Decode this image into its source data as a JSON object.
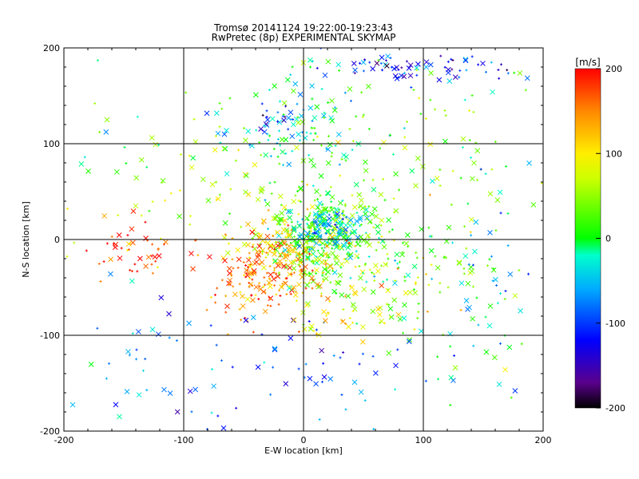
{
  "chart_data": {
    "type": "scatter",
    "title": "Tromsø 20141124 19:22:00-19:23:43",
    "subtitle": "RwPretec (8p) EXPERIMENTAL SKYMAP",
    "xlabel": "E-W location [km]",
    "ylabel": "N-S location [km]",
    "xlim": [
      -200,
      200
    ],
    "ylim": [
      -200,
      200
    ],
    "x_ticks": [
      -200,
      -100,
      0,
      100,
      200
    ],
    "y_ticks": [
      -200,
      -100,
      0,
      100,
      200
    ],
    "x_tick_labels": [
      "-200",
      "-100",
      "0",
      "100",
      "200"
    ],
    "y_tick_labels": [
      "-200",
      "-100",
      "0",
      "100",
      "200"
    ],
    "grid": true,
    "markers": [
      "+",
      "x"
    ],
    "colorbar": {
      "label": "[m/s]",
      "range": [
        -200,
        200
      ],
      "ticks": [
        200,
        100,
        0,
        -100,
        -200
      ],
      "tick_labels": [
        "200",
        "100",
        "0",
        "-100",
        "-200"
      ],
      "colors": [
        {
          "v": -200,
          "c": "#000000"
        },
        {
          "v": -170,
          "c": "#5a008c"
        },
        {
          "v": -120,
          "c": "#0000ff"
        },
        {
          "v": -60,
          "c": "#00aaff"
        },
        {
          "v": -20,
          "c": "#00ffcc"
        },
        {
          "v": 0,
          "c": "#00ff00"
        },
        {
          "v": 70,
          "c": "#ccff00"
        },
        {
          "v": 100,
          "c": "#ffee00"
        },
        {
          "v": 150,
          "c": "#ff8800"
        },
        {
          "v": 200,
          "c": "#ff0000"
        }
      ]
    },
    "series": [
      {
        "clusters": [
          {
            "cx": 15,
            "cy": 5,
            "sx": 25,
            "sy": 22,
            "v": 15,
            "n": 320
          },
          {
            "cx": 20,
            "cy": 15,
            "sx": 12,
            "sy": 10,
            "v": -50,
            "n": 90
          },
          {
            "cx": -35,
            "cy": -35,
            "sx": 25,
            "sy": 22,
            "v": 150,
            "n": 170
          },
          {
            "cx": -15,
            "cy": -15,
            "sx": 20,
            "sy": 18,
            "v": 115,
            "n": 110
          },
          {
            "cx": -140,
            "cy": -10,
            "sx": 22,
            "sy": 16,
            "v": 195,
            "n": 45
          },
          {
            "cx": 80,
            "cy": -35,
            "sx": 45,
            "sy": 28,
            "v": 30,
            "n": 140
          },
          {
            "cx": -10,
            "cy": 110,
            "sx": 30,
            "sy": 35,
            "v": -20,
            "n": 110
          },
          {
            "cx": 90,
            "cy": 180,
            "sx": 40,
            "sy": 9,
            "v": -110,
            "n": 70
          },
          {
            "cx": -25,
            "cy": 125,
            "sx": 9,
            "sy": 10,
            "v": -100,
            "n": 20
          },
          {
            "cx": 10,
            "cy": -140,
            "sx": 70,
            "sy": 30,
            "v": -90,
            "n": 65
          },
          {
            "cx": -60,
            "cy": 60,
            "sx": 45,
            "sy": 40,
            "v": 60,
            "n": 70
          },
          {
            "cx": 100,
            "cy": 60,
            "sx": 45,
            "sy": 30,
            "v": 40,
            "n": 60
          },
          {
            "cx": 160,
            "cy": -20,
            "sx": 25,
            "sy": 40,
            "v": -40,
            "n": 35
          },
          {
            "cx": 30,
            "cy": -70,
            "sx": 35,
            "sy": 20,
            "v": 100,
            "n": 55
          },
          {
            "cx": -130,
            "cy": -120,
            "sx": 40,
            "sy": 40,
            "v": -60,
            "n": 35
          },
          {
            "cx": 80,
            "cy": 120,
            "sx": 50,
            "sy": 40,
            "v": 30,
            "n": 50
          },
          {
            "cx": -150,
            "cy": 80,
            "sx": 30,
            "sy": 60,
            "v": 20,
            "n": 25
          },
          {
            "cx": 150,
            "cy": -140,
            "sx": 30,
            "sy": 30,
            "v": 20,
            "n": 20
          }
        ]
      }
    ]
  }
}
